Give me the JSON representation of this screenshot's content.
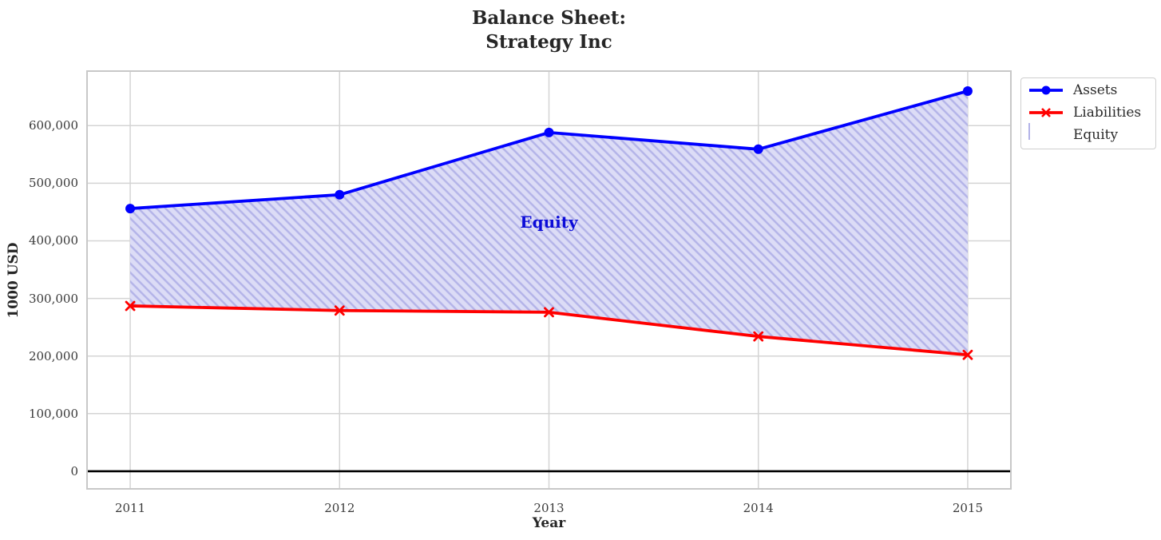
{
  "chart_data": {
    "type": "area",
    "title": "Balance Sheet:\nStrategy Inc",
    "xlabel": "Year",
    "ylabel": "1000 USD",
    "categories": [
      2011,
      2012,
      2013,
      2014,
      2015
    ],
    "xtick_labels": [
      "2011",
      "2012",
      "2013",
      "2014",
      "2015"
    ],
    "series": [
      {
        "name": "Assets",
        "color": "#0000ff",
        "marker": "circle",
        "values": [
          456000,
          480000,
          588000,
          559000,
          660000
        ]
      },
      {
        "name": "Liabilities",
        "color": "#ff0000",
        "marker": "x",
        "values": [
          287000,
          279000,
          276000,
          234000,
          202000
        ]
      }
    ],
    "fill_between": {
      "name": "Equity",
      "upper": "Assets",
      "lower": "Liabilities",
      "equity_values": [
        169000,
        201000,
        312000,
        325000,
        458000
      ],
      "fill_color": "#dcdcf6",
      "hatch_color": "#b3b3e8",
      "hatch": "//"
    },
    "annotation": {
      "text": "Equity",
      "x": 2013,
      "y": 432000,
      "color": "#0b0bd8"
    },
    "xlim": [
      2010.79,
      2015.21
    ],
    "ylim": [
      -32000,
      696000
    ],
    "yticks": [
      0,
      100000,
      200000,
      300000,
      400000,
      500000,
      600000
    ],
    "ytick_labels": [
      "0",
      "100,000",
      "200,000",
      "300,000",
      "400,000",
      "500,000",
      "600,000"
    ],
    "grid": true,
    "grid_color": "#d4d4d4",
    "border_color": "#c8c8c8",
    "zero_line": true,
    "zero_line_color": "#000000",
    "legend_position": "upper right outside"
  }
}
